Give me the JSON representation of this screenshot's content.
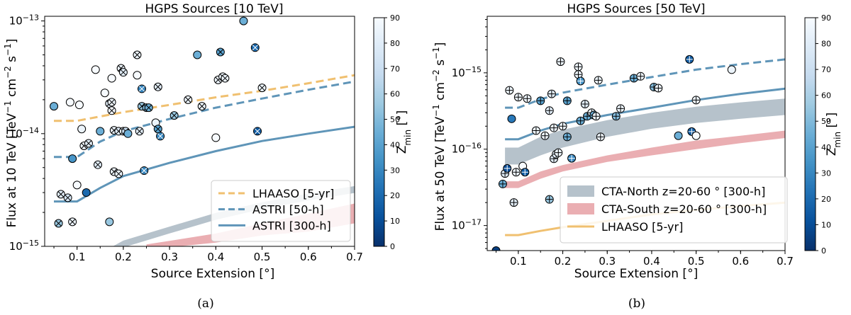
{
  "chart_data": [
    {
      "type": "scatter",
      "title": "HGPS Sources [10 TeV]",
      "xlabel": "Source Extension [°]",
      "ylabel": "Flux at 10 TeV [TeV⁻¹ cm⁻² s⁻¹]",
      "xlim": [
        0.03,
        0.7
      ],
      "ylim": [
        1e-15,
        1.1e-13
      ],
      "yscale": "log",
      "x_ticks": [
        "0.1",
        "0.2",
        "0.3",
        "0.4",
        "0.5",
        "0.6",
        "0.7"
      ],
      "y_ticks": [
        {
          "base": "10",
          "exp": "−15",
          "value": 1e-15
        },
        {
          "base": "10",
          "exp": "−14",
          "value": 1e-14
        },
        {
          "base": "10",
          "exp": "−13",
          "value": 1e-13
        }
      ],
      "colorbar": {
        "label": "Z",
        "sub": "min",
        "unit": "[°]",
        "range": [
          0,
          90
        ],
        "ticks": [
          "0",
          "10",
          "20",
          "30",
          "40",
          "50",
          "60",
          "70",
          "80",
          "90"
        ]
      },
      "curves": [
        {
          "name": "LHAASO [5-yr]",
          "style": "dashed",
          "color": "#f0c070",
          "in_legend": true,
          "x": [
            0.05,
            0.1,
            0.15,
            0.2,
            0.3,
            0.4,
            0.5,
            0.6,
            0.7
          ],
          "y": [
            1.3e-14,
            1.3e-14,
            1.42e-14,
            1.55e-14,
            1.8e-14,
            2.1e-14,
            2.4e-14,
            2.8e-14,
            3.3e-14
          ]
        },
        {
          "name": "ASTRI [50-h]",
          "style": "dashed",
          "color": "#5f95b8",
          "in_legend": true,
          "x": [
            0.05,
            0.1,
            0.15,
            0.2,
            0.3,
            0.4,
            0.5,
            0.6,
            0.7
          ],
          "y": [
            6.2e-15,
            6.2e-15,
            8.5e-15,
            1.05e-14,
            1.35e-14,
            1.7e-14,
            2.05e-14,
            2.45e-14,
            2.9e-14
          ]
        },
        {
          "name": "ASTRI [300-h]",
          "style": "solid",
          "color": "#5f95b8",
          "in_legend": true,
          "x": [
            0.05,
            0.1,
            0.15,
            0.2,
            0.3,
            0.4,
            0.5,
            0.6,
            0.7
          ],
          "y": [
            2.5e-15,
            2.5e-15,
            3.3e-15,
            4.2e-15,
            5.5e-15,
            7e-15,
            8.6e-15,
            1e-14,
            1.15e-14
          ]
        },
        {
          "name": "CTA-North",
          "style": "band",
          "color": "#b6c2cb",
          "in_legend": false,
          "x": [
            0.17,
            0.2,
            0.3,
            0.4,
            0.5,
            0.6,
            0.7
          ],
          "y": [
            9e-16,
            1.05e-15,
            1.4e-15,
            1.85e-15,
            2.3e-15,
            2.75e-15,
            3.2e-15
          ]
        },
        {
          "name": "CTA-South",
          "style": "band",
          "color": "#eaaeb2",
          "in_legend": false,
          "x": [
            0.25,
            0.3,
            0.4,
            0.5,
            0.6,
            0.7
          ],
          "y_low": [
            9.5e-16,
            9.8e-16,
            1.08e-15,
            1.25e-15,
            1.35e-15,
            1.6e-15
          ],
          "y_high": [
            1.04e-15,
            1.12e-15,
            1.3e-15,
            1.6e-15,
            1.95e-15,
            2.4e-15
          ]
        }
      ],
      "points": [
        {
          "x": 0.05,
          "y": 1.75e-14,
          "z": 45,
          "mark": "none"
        },
        {
          "x": 0.06,
          "y": 1.6e-15,
          "z": 55,
          "mark": "x"
        },
        {
          "x": 0.065,
          "y": 2.9e-15,
          "z": 80,
          "mark": "x"
        },
        {
          "x": 0.08,
          "y": 2.7e-15,
          "z": 75,
          "mark": "x"
        },
        {
          "x": 0.085,
          "y": 1.9e-14,
          "z": 90,
          "mark": "none"
        },
        {
          "x": 0.09,
          "y": 1.65e-15,
          "z": 85,
          "mark": "x"
        },
        {
          "x": 0.09,
          "y": 6e-15,
          "z": 35,
          "mark": "none"
        },
        {
          "x": 0.1,
          "y": 3.5e-15,
          "z": 90,
          "mark": "none"
        },
        {
          "x": 0.105,
          "y": 1.8e-14,
          "z": 90,
          "mark": "none"
        },
        {
          "x": 0.11,
          "y": 1.1e-14,
          "z": 85,
          "mark": "none"
        },
        {
          "x": 0.12,
          "y": 3e-15,
          "z": 20,
          "mark": "none"
        },
        {
          "x": 0.115,
          "y": 7.8e-15,
          "z": 85,
          "mark": "x"
        },
        {
          "x": 0.125,
          "y": 8.2e-15,
          "z": 80,
          "mark": "x"
        },
        {
          "x": 0.14,
          "y": 3.7e-14,
          "z": 90,
          "mark": "none"
        },
        {
          "x": 0.145,
          "y": 5.3e-15,
          "z": 80,
          "mark": "x"
        },
        {
          "x": 0.15,
          "y": 1.05e-14,
          "z": 45,
          "mark": "none"
        },
        {
          "x": 0.16,
          "y": 2.3e-14,
          "z": 90,
          "mark": "none"
        },
        {
          "x": 0.17,
          "y": 1.85e-14,
          "z": 80,
          "mark": "x"
        },
        {
          "x": 0.175,
          "y": 1.9e-14,
          "z": 85,
          "mark": "x"
        },
        {
          "x": 0.17,
          "y": 1.65e-15,
          "z": 55,
          "mark": "none"
        },
        {
          "x": 0.175,
          "y": 3.1e-14,
          "z": 90,
          "mark": "none"
        },
        {
          "x": 0.175,
          "y": 1.6e-14,
          "z": 90,
          "mark": "x"
        },
        {
          "x": 0.18,
          "y": 4.6e-15,
          "z": 85,
          "mark": "x"
        },
        {
          "x": 0.18,
          "y": 1.07e-14,
          "z": 85,
          "mark": "x"
        },
        {
          "x": 0.19,
          "y": 4.4e-15,
          "z": 85,
          "mark": "x"
        },
        {
          "x": 0.19,
          "y": 1.05e-14,
          "z": 80,
          "mark": "x"
        },
        {
          "x": 0.195,
          "y": 3.8e-14,
          "z": 85,
          "mark": "x"
        },
        {
          "x": 0.2,
          "y": 3.5e-14,
          "z": 80,
          "mark": "x"
        },
        {
          "x": 0.2,
          "y": 1.05e-14,
          "z": 85,
          "mark": "x"
        },
        {
          "x": 0.205,
          "y": 1.05e-14,
          "z": 70,
          "mark": "x"
        },
        {
          "x": 0.21,
          "y": 1e-14,
          "z": 45,
          "mark": "none"
        },
        {
          "x": 0.23,
          "y": 5e-14,
          "z": 85,
          "mark": "x"
        },
        {
          "x": 0.23,
          "y": 3.3e-14,
          "z": 90,
          "mark": "none"
        },
        {
          "x": 0.235,
          "y": 1.05e-14,
          "z": 80,
          "mark": "x"
        },
        {
          "x": 0.24,
          "y": 2.5e-14,
          "z": 30,
          "mark": "x"
        },
        {
          "x": 0.24,
          "y": 1.75e-14,
          "z": 55,
          "mark": "x"
        },
        {
          "x": 0.25,
          "y": 1.7e-14,
          "z": 50,
          "mark": "x"
        },
        {
          "x": 0.255,
          "y": 1.7e-14,
          "z": 45,
          "mark": "x"
        },
        {
          "x": 0.245,
          "y": 4.7e-15,
          "z": 30,
          "mark": "x"
        },
        {
          "x": 0.27,
          "y": 1.25e-14,
          "z": 85,
          "mark": "none"
        },
        {
          "x": 0.275,
          "y": 2.6e-14,
          "z": 80,
          "mark": "x"
        },
        {
          "x": 0.275,
          "y": 1.1e-14,
          "z": 40,
          "mark": "x"
        },
        {
          "x": 0.28,
          "y": 9.5e-15,
          "z": 30,
          "mark": "x"
        },
        {
          "x": 0.31,
          "y": 1.45e-14,
          "z": 55,
          "mark": "x"
        },
        {
          "x": 0.34,
          "y": 2e-14,
          "z": 85,
          "mark": "x"
        },
        {
          "x": 0.36,
          "y": 5e-14,
          "z": 45,
          "mark": "none"
        },
        {
          "x": 0.37,
          "y": 1.75e-14,
          "z": 85,
          "mark": "x"
        },
        {
          "x": 0.4,
          "y": 9.2e-15,
          "z": 90,
          "mark": "none"
        },
        {
          "x": 0.405,
          "y": 3e-14,
          "z": 85,
          "mark": "x"
        },
        {
          "x": 0.41,
          "y": 5.3e-14,
          "z": 40,
          "mark": "x"
        },
        {
          "x": 0.415,
          "y": 3.2e-14,
          "z": 85,
          "mark": "x"
        },
        {
          "x": 0.42,
          "y": 3.1e-14,
          "z": 85,
          "mark": "x"
        },
        {
          "x": 0.46,
          "y": 1e-13,
          "z": 45,
          "mark": "none"
        },
        {
          "x": 0.485,
          "y": 5.8e-14,
          "z": 20,
          "mark": "x"
        },
        {
          "x": 0.49,
          "y": 1.05e-14,
          "z": 15,
          "mark": "x"
        },
        {
          "x": 0.5,
          "y": 2.55e-14,
          "z": 85,
          "mark": "x"
        }
      ],
      "legend": {
        "location": "lower right"
      },
      "caption": "(a)"
    },
    {
      "type": "scatter",
      "title": "HGPS Sources [50 TeV]",
      "xlabel": "Source Extension [°]",
      "ylabel": "Flux at 50 TeV [TeV⁻¹ cm⁻² s⁻¹]",
      "xlim": [
        0.03,
        0.7
      ],
      "ylim": [
        4.7e-18,
        5.5e-15
      ],
      "yscale": "log",
      "x_ticks": [
        "0.1",
        "0.2",
        "0.3",
        "0.4",
        "0.5",
        "0.6",
        "0.7"
      ],
      "y_ticks": [
        {
          "base": "10",
          "exp": "−17",
          "value": 1e-17
        },
        {
          "base": "10",
          "exp": "−16",
          "value": 1e-16
        },
        {
          "base": "10",
          "exp": "−15",
          "value": 1e-15
        }
      ],
      "colorbar": {
        "label": "Z",
        "sub": "min",
        "unit": "[°]",
        "range": [
          0,
          90
        ],
        "ticks": [
          "0",
          "10",
          "20",
          "30",
          "40",
          "50",
          "60",
          "70",
          "80",
          "90"
        ]
      },
      "curves": [
        {
          "name": "ASTRI [50-h]",
          "style": "dashed",
          "color": "#5f95b8",
          "in_legend": false,
          "x": [
            0.07,
            0.1,
            0.15,
            0.2,
            0.3,
            0.4,
            0.5,
            0.6,
            0.7
          ],
          "y": [
            3.5e-16,
            3.5e-16,
            4.5e-16,
            5.5e-16,
            7e-16,
            8.8e-16,
            1.1e-15,
            1.3e-15,
            1.5e-15
          ]
        },
        {
          "name": "ASTRI [300-h]",
          "style": "solid",
          "color": "#5f95b8",
          "in_legend": false,
          "x": [
            0.07,
            0.1,
            0.15,
            0.2,
            0.3,
            0.4,
            0.5,
            0.6,
            0.7
          ],
          "y": [
            1.35e-16,
            1.35e-16,
            1.75e-16,
            2.15e-16,
            2.8e-16,
            3.5e-16,
            4.4e-16,
            5.3e-16,
            6.2e-16
          ]
        },
        {
          "name": "CTA-North z=20-60 ° [300-h]",
          "style": "band",
          "color": "#b6c2cb",
          "in_legend": true,
          "x": [
            0.07,
            0.1,
            0.15,
            0.2,
            0.3,
            0.4,
            0.5,
            0.6,
            0.7
          ],
          "y_low": [
            6.3e-17,
            6.3e-17,
            8.3e-17,
            1.05e-16,
            1.45e-16,
            1.85e-16,
            2.2e-16,
            2.5e-16,
            2.8e-16
          ],
          "y_high": [
            1.05e-16,
            1.05e-16,
            1.45e-16,
            1.8e-16,
            2.4e-16,
            3e-16,
            3.6e-16,
            4.1e-16,
            4.6e-16
          ]
        },
        {
          "name": "CTA-South z=20-60 ° [300-h]",
          "style": "band",
          "color": "#eaaeb2",
          "in_legend": true,
          "x": [
            0.07,
            0.1,
            0.15,
            0.2,
            0.3,
            0.4,
            0.5,
            0.6,
            0.7
          ],
          "y_low": [
            3.1e-17,
            3.1e-17,
            4.1e-17,
            5.1e-17,
            6.8e-17,
            8.3e-17,
            1e-16,
            1.2e-16,
            1.4e-16
          ],
          "y_high": [
            3.8e-17,
            3.8e-17,
            5.1e-17,
            6.2e-17,
            8.3e-17,
            1.05e-16,
            1.3e-16,
            1.5e-16,
            1.75e-16
          ]
        },
        {
          "name": "LHAASO [5-yr]",
          "style": "solid",
          "color": "#f0c070",
          "in_legend": true,
          "x": [
            0.07,
            0.1,
            0.15,
            0.2,
            0.3,
            0.4,
            0.5,
            0.6,
            0.7
          ],
          "y": [
            7.5e-18,
            7.5e-18,
            8.5e-18,
            9.5e-18,
            1.15e-17,
            1.4e-17,
            1.6e-17,
            1.8e-17,
            2e-17
          ]
        }
      ],
      "points": [
        {
          "x": 0.05,
          "y": 4.7e-18,
          "z": 5,
          "mark": "none"
        },
        {
          "x": 0.065,
          "y": 3.5e-17,
          "z": 45,
          "mark": "plus"
        },
        {
          "x": 0.07,
          "y": 4.8e-17,
          "z": 80,
          "mark": "plus"
        },
        {
          "x": 0.075,
          "y": 5.6e-17,
          "z": 10,
          "mark": "plus"
        },
        {
          "x": 0.08,
          "y": 5.9e-16,
          "z": 85,
          "mark": "plus"
        },
        {
          "x": 0.085,
          "y": 2.5e-16,
          "z": 25,
          "mark": "none"
        },
        {
          "x": 0.09,
          "y": 2e-17,
          "z": 80,
          "mark": "plus"
        },
        {
          "x": 0.095,
          "y": 5e-17,
          "z": 85,
          "mark": "plus"
        },
        {
          "x": 0.1,
          "y": 4.8e-16,
          "z": 85,
          "mark": "plus"
        },
        {
          "x": 0.11,
          "y": 6e-17,
          "z": 90,
          "mark": "none"
        },
        {
          "x": 0.115,
          "y": 5e-17,
          "z": 15,
          "mark": "plus"
        },
        {
          "x": 0.12,
          "y": 4.6e-16,
          "z": 85,
          "mark": "plus"
        },
        {
          "x": 0.14,
          "y": 1.75e-16,
          "z": 85,
          "mark": "plus"
        },
        {
          "x": 0.15,
          "y": 4.3e-16,
          "z": 40,
          "mark": "plus"
        },
        {
          "x": 0.16,
          "y": 1.5e-16,
          "z": 85,
          "mark": "plus"
        },
        {
          "x": 0.17,
          "y": 2.2e-17,
          "z": 55,
          "mark": "plus"
        },
        {
          "x": 0.175,
          "y": 5.3e-16,
          "z": 80,
          "mark": "plus"
        },
        {
          "x": 0.17,
          "y": 3.2e-16,
          "z": 80,
          "mark": "plus"
        },
        {
          "x": 0.18,
          "y": 1.9e-16,
          "z": 85,
          "mark": "plus"
        },
        {
          "x": 0.18,
          "y": 7.5e-17,
          "z": 80,
          "mark": "plus"
        },
        {
          "x": 0.185,
          "y": 8.6e-17,
          "z": 80,
          "mark": "plus"
        },
        {
          "x": 0.19,
          "y": 9e-17,
          "z": 85,
          "mark": "plus"
        },
        {
          "x": 0.195,
          "y": 1.4e-15,
          "z": 85,
          "mark": "plus"
        },
        {
          "x": 0.2,
          "y": 2e-16,
          "z": 85,
          "mark": "plus"
        },
        {
          "x": 0.21,
          "y": 1.45e-16,
          "z": 45,
          "mark": "plus"
        },
        {
          "x": 0.21,
          "y": 4.3e-16,
          "z": 40,
          "mark": "plus"
        },
        {
          "x": 0.22,
          "y": 7.6e-17,
          "z": 30,
          "mark": "plus"
        },
        {
          "x": 0.235,
          "y": 1.2e-15,
          "z": 85,
          "mark": "plus"
        },
        {
          "x": 0.235,
          "y": 9.5e-16,
          "z": 85,
          "mark": "plus"
        },
        {
          "x": 0.24,
          "y": 7.8e-16,
          "z": 35,
          "mark": "plus"
        },
        {
          "x": 0.24,
          "y": 2.35e-16,
          "z": 45,
          "mark": "plus"
        },
        {
          "x": 0.25,
          "y": 3.9e-16,
          "z": 80,
          "mark": "plus"
        },
        {
          "x": 0.255,
          "y": 2.7e-16,
          "z": 45,
          "mark": "plus"
        },
        {
          "x": 0.265,
          "y": 3e-16,
          "z": 85,
          "mark": "plus"
        },
        {
          "x": 0.27,
          "y": 2.8e-16,
          "z": 45,
          "mark": "plus"
        },
        {
          "x": 0.275,
          "y": 2.7e-16,
          "z": 85,
          "mark": "plus"
        },
        {
          "x": 0.28,
          "y": 8e-16,
          "z": 85,
          "mark": "plus"
        },
        {
          "x": 0.285,
          "y": 1.45e-16,
          "z": 85,
          "mark": "plus"
        },
        {
          "x": 0.32,
          "y": 2.7e-16,
          "z": 50,
          "mark": "plus"
        },
        {
          "x": 0.33,
          "y": 3.4e-16,
          "z": 85,
          "mark": "plus"
        },
        {
          "x": 0.36,
          "y": 8.5e-16,
          "z": 45,
          "mark": "plus"
        },
        {
          "x": 0.375,
          "y": 9e-16,
          "z": 85,
          "mark": "plus"
        },
        {
          "x": 0.405,
          "y": 6.5e-16,
          "z": 50,
          "mark": "plus"
        },
        {
          "x": 0.415,
          "y": 6.3e-16,
          "z": 85,
          "mark": "plus"
        },
        {
          "x": 0.46,
          "y": 1.5e-16,
          "z": 45,
          "mark": "none"
        },
        {
          "x": 0.485,
          "y": 1.5e-15,
          "z": 15,
          "mark": "plus"
        },
        {
          "x": 0.49,
          "y": 1.7e-16,
          "z": 15,
          "mark": "plus"
        },
        {
          "x": 0.5,
          "y": 4.4e-16,
          "z": 85,
          "mark": "plus"
        },
        {
          "x": 0.5,
          "y": 1.5e-16,
          "z": 90,
          "mark": "none"
        },
        {
          "x": 0.58,
          "y": 1.1e-15,
          "z": 85,
          "mark": "none"
        }
      ],
      "legend": {
        "location": "lower right"
      },
      "caption": "(b)"
    }
  ]
}
